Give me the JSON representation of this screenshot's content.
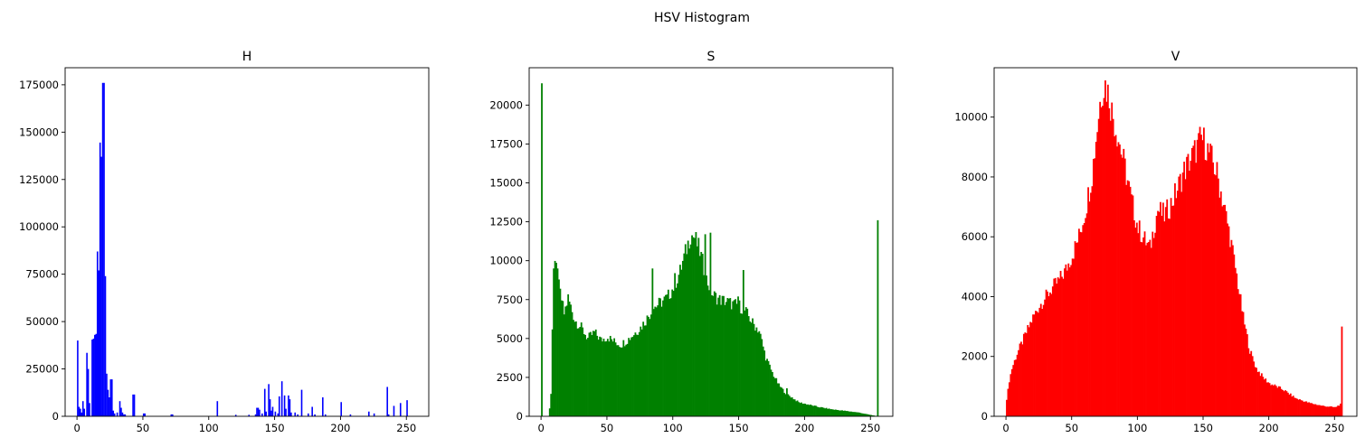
{
  "figure": {
    "suptitle": "HSV Histogram"
  },
  "chart_data": [
    {
      "type": "bar",
      "title": "H",
      "color": "#0000ff",
      "xlim": [
        -9,
        267
      ],
      "ylim": [
        0,
        184000
      ],
      "xticks": [
        0,
        50,
        100,
        150,
        200,
        250
      ],
      "yticks": [
        0,
        25000,
        50000,
        75000,
        100000,
        125000,
        150000,
        175000
      ],
      "x": [
        0,
        1,
        2,
        3,
        4,
        5,
        7,
        8,
        9,
        11,
        12,
        13,
        14,
        15,
        16,
        17,
        18,
        19,
        20,
        21,
        22,
        23,
        24,
        25,
        26,
        27,
        28,
        30,
        32,
        33,
        34,
        35,
        36,
        42,
        43,
        50,
        51,
        71,
        72,
        106,
        120,
        130,
        135,
        136,
        137,
        138,
        140,
        142,
        143,
        145,
        146,
        147,
        148,
        150,
        152,
        153,
        155,
        157,
        158,
        160,
        161,
        162,
        165,
        167,
        170,
        175,
        178,
        180,
        186,
        188,
        200,
        207,
        221,
        225,
        235,
        236,
        240,
        245,
        250
      ],
      "values": [
        40000,
        5000,
        4000,
        2000,
        8000,
        4000,
        33500,
        25000,
        7000,
        40500,
        41000,
        43000,
        43500,
        87000,
        77000,
        144500,
        137000,
        176000,
        176000,
        74000,
        22500,
        14000,
        10000,
        19500,
        19500,
        3000,
        1500,
        2000,
        8000,
        4500,
        2000,
        1000,
        1000,
        11500,
        11500,
        1500,
        1500,
        1000,
        1000,
        8000,
        800,
        800,
        1000,
        4500,
        4500,
        3500,
        1500,
        14500,
        2500,
        17000,
        9000,
        3000,
        5000,
        2500,
        1500,
        10500,
        18500,
        11000,
        4000,
        11000,
        9000,
        2000,
        2000,
        1000,
        14000,
        1500,
        5000,
        1000,
        10000,
        1000,
        7500,
        1000,
        2500,
        1500,
        15500,
        1000,
        5500,
        7000,
        8500
      ]
    },
    {
      "type": "bar",
      "title": "S",
      "color": "#008000",
      "xlim": [
        -9,
        267
      ],
      "ylim": [
        0,
        22400
      ],
      "xticks": [
        0,
        50,
        100,
        150,
        200,
        250
      ],
      "yticks": [
        0,
        2500,
        5000,
        7500,
        10000,
        12500,
        15000,
        17500,
        20000
      ],
      "keypoints": [
        [
          0,
          21400
        ],
        [
          1,
          0
        ],
        [
          5,
          0
        ],
        [
          6,
          500
        ],
        [
          7,
          1500
        ],
        [
          8,
          5700
        ],
        [
          9,
          9400
        ],
        [
          11,
          9500
        ],
        [
          13,
          8300
        ],
        [
          15,
          7500
        ],
        [
          17,
          6600
        ],
        [
          20,
          7600
        ],
        [
          25,
          6200
        ],
        [
          30,
          5700
        ],
        [
          35,
          5000
        ],
        [
          40,
          5400
        ],
        [
          45,
          4900
        ],
        [
          50,
          5100
        ],
        [
          55,
          4800
        ],
        [
          60,
          4600
        ],
        [
          65,
          4900
        ],
        [
          70,
          5300
        ],
        [
          75,
          5700
        ],
        [
          80,
          6300
        ],
        [
          85,
          7000
        ],
        [
          90,
          7300
        ],
        [
          95,
          7600
        ],
        [
          100,
          8300
        ],
        [
          105,
          9300
        ],
        [
          110,
          10800
        ],
        [
          113,
          11700
        ],
        [
          116,
          11500
        ],
        [
          120,
          10600
        ],
        [
          125,
          8800
        ],
        [
          130,
          7800
        ],
        [
          135,
          7500
        ],
        [
          140,
          7400
        ],
        [
          145,
          7200
        ],
        [
          150,
          7100
        ],
        [
          155,
          6700
        ],
        [
          160,
          6000
        ],
        [
          165,
          5500
        ],
        [
          170,
          3800
        ],
        [
          175,
          2800
        ],
        [
          180,
          2000
        ],
        [
          185,
          1500
        ],
        [
          190,
          1200
        ],
        [
          195,
          900
        ],
        [
          200,
          800
        ],
        [
          205,
          700
        ],
        [
          210,
          600
        ],
        [
          220,
          450
        ],
        [
          230,
          350
        ],
        [
          240,
          250
        ],
        [
          250,
          80
        ],
        [
          254,
          20
        ],
        [
          255,
          12600
        ]
      ],
      "spikes": [
        [
          9,
          9500
        ],
        [
          12,
          9500
        ],
        [
          84,
          9500
        ],
        [
          101,
          9200
        ],
        [
          117,
          11200
        ],
        [
          124,
          11700
        ],
        [
          128,
          11800
        ],
        [
          153,
          9400
        ],
        [
          149,
          7700
        ],
        [
          173,
          2300
        ],
        [
          186,
          1800
        ]
      ]
    },
    {
      "type": "bar",
      "title": "V",
      "color": "#ff0000",
      "xlim": [
        -9,
        267
      ],
      "ylim": [
        0,
        11650
      ],
      "xticks": [
        0,
        50,
        100,
        150,
        200,
        250
      ],
      "yticks": [
        0,
        2000,
        4000,
        6000,
        8000,
        10000
      ],
      "keypoints": [
        [
          0,
          550
        ],
        [
          2,
          1200
        ],
        [
          4,
          1600
        ],
        [
          8,
          2100
        ],
        [
          12,
          2500
        ],
        [
          16,
          2900
        ],
        [
          20,
          3300
        ],
        [
          25,
          3700
        ],
        [
          30,
          4000
        ],
        [
          35,
          4300
        ],
        [
          40,
          4550
        ],
        [
          45,
          4900
        ],
        [
          50,
          5400
        ],
        [
          55,
          6000
        ],
        [
          60,
          6900
        ],
        [
          65,
          8100
        ],
        [
          68,
          9300
        ],
        [
          71,
          10500
        ],
        [
          73,
          11000
        ],
        [
          75,
          11100
        ],
        [
          78,
          10700
        ],
        [
          80,
          10200
        ],
        [
          85,
          9300
        ],
        [
          90,
          8300
        ],
        [
          95,
          7200
        ],
        [
          100,
          6300
        ],
        [
          105,
          5900
        ],
        [
          109,
          5600
        ],
        [
          112,
          6300
        ],
        [
          115,
          6900
        ],
        [
          120,
          6700
        ],
        [
          125,
          7100
        ],
        [
          130,
          7600
        ],
        [
          135,
          8200
        ],
        [
          140,
          8600
        ],
        [
          145,
          9000
        ],
        [
          148,
          9300
        ],
        [
          150,
          9200
        ],
        [
          155,
          8700
        ],
        [
          160,
          8100
        ],
        [
          165,
          7100
        ],
        [
          170,
          6000
        ],
        [
          175,
          4700
        ],
        [
          180,
          3300
        ],
        [
          185,
          2200
        ],
        [
          190,
          1600
        ],
        [
          195,
          1300
        ],
        [
          200,
          1100
        ],
        [
          210,
          900
        ],
        [
          220,
          600
        ],
        [
          230,
          450
        ],
        [
          240,
          350
        ],
        [
          250,
          300
        ],
        [
          254,
          400
        ],
        [
          255,
          3000
        ]
      ],
      "spikes": []
    }
  ]
}
